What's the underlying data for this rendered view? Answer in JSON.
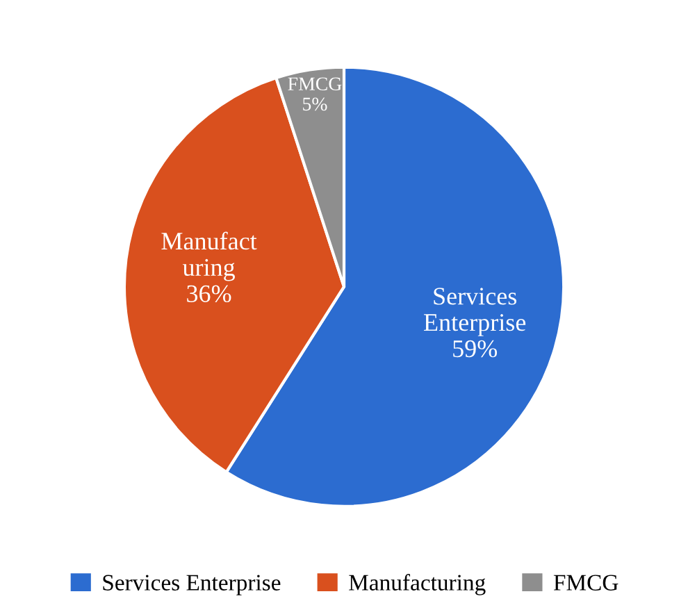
{
  "chart_data": {
    "type": "pie",
    "categories": [
      "Services Enterprise",
      "Manufacturing",
      "FMCG"
    ],
    "values": [
      59,
      36,
      5
    ],
    "colors": [
      "#2c6cd0",
      "#d9501e",
      "#8e8e8e"
    ],
    "value_labels": [
      "59%",
      "36%",
      "5%"
    ],
    "annotations": [
      {
        "text": "Services\nEnterprise",
        "x": "Services Enterprise"
      },
      {
        "text": "Manufact\nuring",
        "x": "Manufacturing"
      },
      {
        "text": "FMCG",
        "x": "FMCG"
      }
    ],
    "legend": "bottom"
  }
}
